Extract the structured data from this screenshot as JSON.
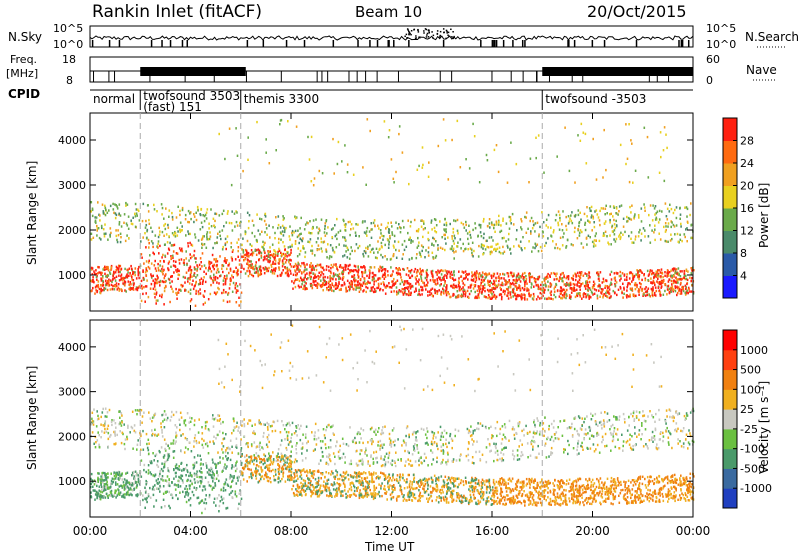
{
  "header": {
    "station": "Rankin Inlet (fitACF)",
    "beam": "Beam 10",
    "date": "20/Oct/2015"
  },
  "top_panels": {
    "nsky_label": "N.Sky",
    "nsky_ticks": [
      "10^5",
      "10^0"
    ],
    "nsearch_label": "N.Search",
    "nsearch_ticks": [
      "10^5",
      "10^0"
    ],
    "freq_label": "Freq.",
    "freq_unit": "[MHz]",
    "freq_ticks": [
      "18",
      "8"
    ],
    "nave_label": "Nave",
    "nave_ticks": [
      "60",
      "0"
    ],
    "cpid_label": "CPID",
    "cpid_segments": [
      {
        "name": "normal",
        "start_hr": 0.0,
        "end_hr": 2.0
      },
      {
        "name": "twofsound 3503",
        "name2": "(fast) 151",
        "start_hr": 2.0,
        "end_hr": 6.0
      },
      {
        "name": "themis 3300",
        "start_hr": 6.0,
        "end_hr": 18.0
      },
      {
        "name": "twofsound -3503",
        "start_hr": 18.0,
        "end_hr": 24.0
      }
    ]
  },
  "chart_data": [
    {
      "type": "heatmap",
      "quantity": "Power",
      "ylabel": "Slant Range [km]",
      "yticks": [
        1000,
        2000,
        3000,
        4000
      ],
      "ylim": [
        200,
        4600
      ],
      "colorbar_label": "Power [dB]",
      "colorbar_ticks": [
        "4",
        "8",
        "12",
        "16",
        "20",
        "24",
        "28"
      ],
      "colors": [
        "#1a1aff",
        "#2a5aa8",
        "#4a8a6a",
        "#6aaa4a",
        "#e8d020",
        "#f0a020",
        "#ff6a10",
        "#ff2010"
      ]
    },
    {
      "type": "heatmap",
      "quantity": "Velocity",
      "ylabel": "Slant Range [km]",
      "yticks": [
        1000,
        2000,
        3000,
        4000
      ],
      "ylim": [
        200,
        4600
      ],
      "colorbar_label": "Velocity [m s⁻¹]",
      "colorbar_ticks": [
        "1000",
        "500",
        "100",
        "25",
        "-25",
        "-100",
        "-500",
        "-1000"
      ],
      "colors": [
        "#2040c0",
        "#3a6aa0",
        "#4a9a6a",
        "#6ac040",
        "#c8c8c0",
        "#f0b020",
        "#f08010",
        "#ff4010",
        "#ff0000"
      ]
    }
  ],
  "x_axis": {
    "ticks": [
      "00:00",
      "04:00",
      "08:00",
      "12:00",
      "16:00",
      "20:00",
      "00:00"
    ],
    "label": "Time UT"
  }
}
